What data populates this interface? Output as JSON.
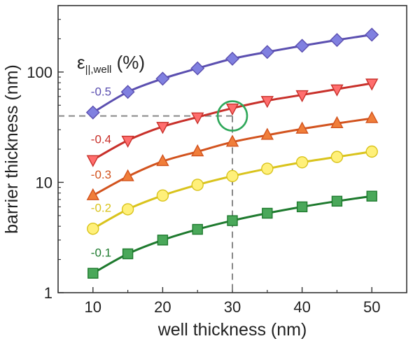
{
  "chart_data": {
    "type": "line",
    "title": "",
    "xlabel": "well thickness (nm)",
    "ylabel": "barrier thickness (nm)",
    "xlim": [
      5,
      55
    ],
    "ylim": [
      1,
      400
    ],
    "yscale": "log",
    "x": [
      10,
      15,
      20,
      25,
      30,
      35,
      40,
      45,
      50
    ],
    "xticks": [
      10,
      20,
      30,
      40,
      50
    ],
    "xtick_labels": [
      "10",
      "20",
      "30",
      "40",
      "50"
    ],
    "yticks": [
      1,
      10,
      100
    ],
    "ytick_labels": [
      "1",
      "10",
      "100"
    ],
    "legend_title_main": "ε",
    "legend_title_sub": "||,well",
    "legend_title_unit": " (%)",
    "series": [
      {
        "name": "-0.5",
        "marker": "diamond",
        "color": "#5b4fb0",
        "fill": "#8080e0",
        "values": [
          43,
          66,
          87,
          108,
          132,
          152,
          173,
          195,
          218
        ]
      },
      {
        "name": "-0.4",
        "marker": "triangle-down",
        "color": "#c8302a",
        "fill": "#ff6e6e",
        "values": [
          16,
          24,
          32,
          39,
          47,
          55,
          62,
          70,
          79
        ]
      },
      {
        "name": "-0.3",
        "marker": "triangle-up",
        "color": "#d2531e",
        "fill": "#f07e3a",
        "values": [
          7.6,
          11.3,
          15.5,
          19,
          23.2,
          26.8,
          30.5,
          34.2,
          38
        ]
      },
      {
        "name": "-0.2",
        "marker": "circle",
        "color": "#d9c31c",
        "fill": "#fff07a",
        "values": [
          3.8,
          5.7,
          7.6,
          9.5,
          11.4,
          13.3,
          15.2,
          17,
          19
        ]
      },
      {
        "name": "-0.1",
        "marker": "square",
        "color": "#1e7a2e",
        "fill": "#4aa85a",
        "values": [
          1.5,
          2.25,
          3.0,
          3.75,
          4.5,
          5.25,
          6.0,
          6.75,
          7.5
        ]
      }
    ],
    "reference": {
      "x": 30,
      "y": 40,
      "line_color": "#888888",
      "circle_color": "#2fa85a"
    }
  }
}
